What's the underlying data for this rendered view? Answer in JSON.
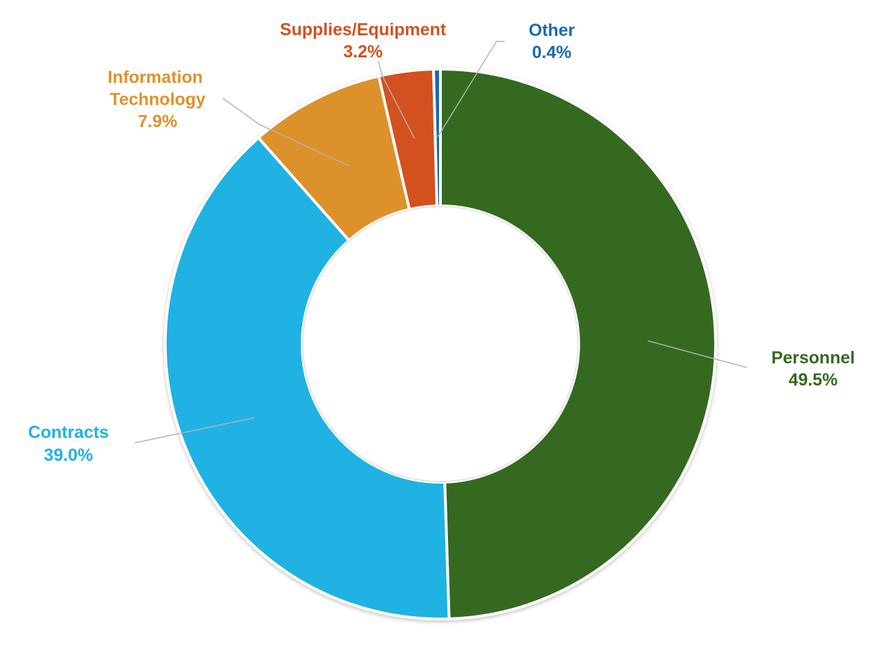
{
  "chart_data": {
    "type": "pie",
    "donut": true,
    "title": "",
    "legend": "none",
    "series": [
      {
        "name": "",
        "slices": [
          {
            "label": "Personnel",
            "value": 49.5,
            "value_label": "49.5%",
            "color": "#356920"
          },
          {
            "label": "Contracts",
            "value": 39.0,
            "value_label": "39.0%",
            "color": "#1fb2e2"
          },
          {
            "label": "Information Technology",
            "value": 7.9,
            "value_label": "7.9%",
            "color": "#dd912b"
          },
          {
            "label": "Supplies/Equipment",
            "value": 3.2,
            "value_label": "3.2%",
            "color": "#d2511f"
          },
          {
            "label": "Other",
            "value": 0.4,
            "value_label": "0.4%",
            "color": "#1a6aaf"
          }
        ]
      }
    ]
  }
}
